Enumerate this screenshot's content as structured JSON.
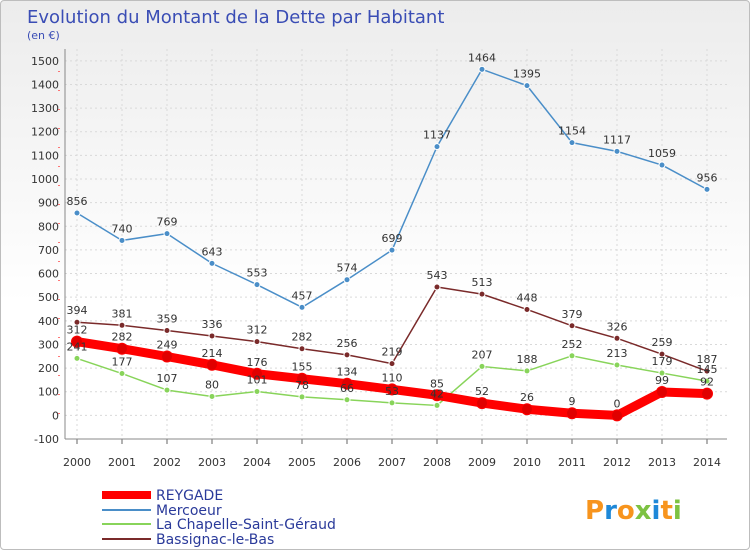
{
  "chart_data": {
    "type": "line",
    "title": "Evolution du Montant de la Dette par Habitant",
    "subtitle": "(en €)",
    "x": [
      "2000",
      "2001",
      "2002",
      "2003",
      "2004",
      "2005",
      "2006",
      "2007",
      "2008",
      "2009",
      "2010",
      "2011",
      "2012",
      "2013",
      "2014"
    ],
    "y_ticks": [
      -100,
      0,
      100,
      200,
      300,
      400,
      500,
      600,
      700,
      800,
      900,
      1000,
      1100,
      1200,
      1300,
      1400,
      1500
    ],
    "ylim": [
      -100,
      1550
    ],
    "grid": true,
    "legend_position": "bottom-left",
    "series": [
      {
        "name": "REYGADE",
        "color": "#ff0000",
        "values": [
          312,
          282,
          249,
          214,
          176,
          155,
          134,
          110,
          85,
          52,
          26,
          9,
          0,
          99,
          92
        ],
        "labels": [
          "312",
          "282",
          "249",
          "214",
          "176",
          "155",
          "134",
          "110",
          "85",
          "52",
          "26",
          "9",
          "0",
          "99",
          "92"
        ]
      },
      {
        "name": "Mercoeur",
        "color": "#4a8ec8",
        "values": [
          856,
          740,
          769,
          643,
          553,
          457,
          574,
          699,
          1137,
          1464,
          1395,
          1154,
          1117,
          1059,
          956
        ],
        "labels": [
          "856",
          "740",
          "769",
          "643",
          "553",
          "457",
          "574",
          "699",
          "1137",
          "1464",
          "1395",
          "1154",
          "1117",
          "1059",
          "956"
        ]
      },
      {
        "name": "La Chapelle-Saint-Géraud",
        "color": "#88d45a",
        "values": [
          241,
          177,
          107,
          80,
          101,
          78,
          66,
          53,
          42,
          207,
          188,
          252,
          213,
          179,
          145
        ],
        "labels": [
          "241",
          "177",
          "107",
          "80",
          "101",
          "78",
          "66",
          "53",
          "42",
          "207",
          "188",
          "252",
          "213",
          "179",
          "145"
        ]
      },
      {
        "name": "Bassignac-le-Bas",
        "color": "#7a2a2a",
        "values": [
          394,
          381,
          359,
          336,
          312,
          282,
          256,
          219,
          543,
          513,
          448,
          379,
          326,
          259,
          187
        ],
        "labels": [
          "394",
          "381",
          "359",
          "336",
          "312",
          "282",
          "256",
          "219",
          "543",
          "513",
          "448",
          "379",
          "326",
          "259",
          "187"
        ]
      }
    ]
  },
  "logo": {
    "text": "Proxiti"
  }
}
